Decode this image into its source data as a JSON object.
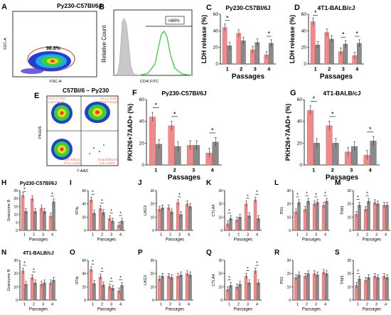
{
  "panels_static": {
    "A": {
      "label": "A",
      "title": "Py230-C57Bl/6J",
      "gate_pct": "98.8%",
      "ylabel": "SSC-A",
      "xlabel": "FSC-A"
    },
    "B": {
      "label": "B",
      "ylabel": "Relative Count",
      "xlabel": "CD4/ FITC",
      "gate": ">98%"
    },
    "E": {
      "label": "E",
      "title": "C57Bl/6 – Py230",
      "ylabel": "PKH26",
      "xlabel": "7-AAD",
      "q_tl_name": "Live Target",
      "q_tl_pct": "37.3 ± 7.9%",
      "q_tr_name": "Dead Target",
      "q_tr_pct": "44.1 ± 5.9%",
      "q_bl_name": "Live Effector",
      "q_bl_pct": "97.8 ± 0.5%",
      "q_br_name": "Dead Effector",
      "q_br_pct": "1.9 ± 0.5%"
    }
  },
  "colors": {
    "salmon": "#f08a8a",
    "grey": "#8a8a8a",
    "dark_grey": "#555555",
    "green": "#39d12f"
  },
  "chart_data": [
    {
      "id": "C",
      "type": "bar",
      "title": "Py230-C57Bl/6J",
      "xlabel": "Passages",
      "ylabel": "LDH release (%)",
      "categories": [
        "1",
        "2",
        "3",
        "4"
      ],
      "ylim": [
        0,
        60
      ],
      "yticks": [
        0,
        20,
        40,
        60
      ],
      "series": [
        {
          "values": [
            44,
            37,
            17,
            11
          ]
        },
        {
          "values": [
            22,
            28,
            26,
            25
          ]
        }
      ],
      "sig": [
        1,
        4
      ]
    },
    {
      "id": "D",
      "type": "bar",
      "title": "4T1-BALB/cJ",
      "xlabel": "Passages",
      "ylabel": "LDH release (%)",
      "categories": [
        "1",
        "2",
        "3",
        "4"
      ],
      "ylim": [
        0,
        60
      ],
      "yticks": [
        0,
        20,
        40,
        60
      ],
      "series": [
        {
          "values": [
            51,
            38,
            15,
            10
          ]
        },
        {
          "values": [
            23,
            30,
            24,
            25
          ]
        }
      ],
      "sig": [
        1,
        3,
        4
      ]
    },
    {
      "id": "F",
      "type": "bar",
      "title": "Py230-C57Bl/6J",
      "xlabel": "Passages",
      "ylabel": "PKH26+7AAD+ (%)",
      "categories": [
        "1",
        "2",
        "3",
        "4"
      ],
      "ylim": [
        0,
        60
      ],
      "yticks": [
        0,
        20,
        40,
        60
      ],
      "series": [
        {
          "values": [
            44,
            36,
            18,
            11
          ]
        },
        {
          "values": [
            19,
            17,
            18,
            21
          ]
        }
      ],
      "sig": [
        1,
        2,
        4
      ]
    },
    {
      "id": "G",
      "type": "bar",
      "title": "4T1-BALB/cJ",
      "xlabel": "Passages",
      "ylabel": "PKH26+7AAD+ (%)",
      "categories": [
        "1",
        "2",
        "3",
        "4"
      ],
      "ylim": [
        0,
        60
      ],
      "yticks": [
        0,
        20,
        40,
        60
      ],
      "series": [
        {
          "values": [
            50,
            36,
            12,
            9
          ]
        },
        {
          "values": [
            20,
            20,
            17,
            22
          ]
        }
      ],
      "sig": [
        1,
        2,
        4
      ]
    },
    {
      "id": "H",
      "type": "bar",
      "title": "Py230-C57Bl/6J",
      "xlabel": "Passages",
      "ylabel": "Granzyme B",
      "categories": [
        "1",
        "2",
        "3",
        "4"
      ],
      "ylim": [
        0,
        25
      ],
      "yticks": [
        0,
        5,
        10,
        15,
        20,
        25
      ],
      "series": [
        {
          "values": [
            22,
            20,
            14,
            9
          ]
        },
        {
          "values": [
            12,
            12,
            12,
            18
          ]
        }
      ],
      "sig": [
        1,
        4
      ]
    },
    {
      "id": "I",
      "type": "bar",
      "xlabel": "Passages",
      "ylabel": "IFNγ",
      "categories": [
        "1",
        "2",
        "3",
        "4"
      ],
      "ylim": [
        0,
        60
      ],
      "yticks": [
        0,
        20,
        40,
        60
      ],
      "series": [
        {
          "values": [
            46,
            33,
            18,
            8
          ]
        },
        {
          "values": [
            26,
            27,
            14,
            14
          ]
        }
      ],
      "sig": [
        1,
        2,
        3,
        4
      ]
    },
    {
      "id": "J",
      "type": "bar",
      "xlabel": "Passages",
      "ylabel": "LAG3",
      "categories": [
        "1",
        "2",
        "3",
        "4"
      ],
      "ylim": [
        0,
        30
      ],
      "yticks": [
        0,
        10,
        20,
        30
      ],
      "series": [
        {
          "values": [
            16,
            17,
            21,
            20
          ]
        },
        {
          "values": [
            17,
            14,
            12,
            18
          ]
        }
      ],
      "sig": [
        3
      ]
    },
    {
      "id": "K",
      "type": "bar",
      "xlabel": "Passages",
      "ylabel": "CTLA4",
      "categories": [
        "1",
        "2",
        "3",
        "4"
      ],
      "ylim": [
        0,
        30
      ],
      "yticks": [
        0,
        10,
        20,
        30
      ],
      "series": [
        {
          "values": [
            5,
            8,
            20,
            23
          ]
        },
        {
          "values": [
            9,
            10,
            11,
            9
          ]
        }
      ],
      "sig": [
        1,
        3,
        4
      ]
    },
    {
      "id": "L",
      "type": "bar",
      "xlabel": "Passages",
      "ylabel": "PD1",
      "categories": [
        "1",
        "2",
        "3",
        "4"
      ],
      "ylim": [
        0,
        30
      ],
      "yticks": [
        0,
        10,
        20,
        30
      ],
      "series": [
        {
          "values": [
            14,
            16,
            20,
            19
          ]
        },
        {
          "values": [
            21,
            22,
            21,
            22
          ]
        }
      ],
      "sig": [
        1,
        2,
        3,
        4
      ]
    },
    {
      "id": "M",
      "type": "bar",
      "xlabel": "Passages",
      "ylabel": "TIM3",
      "categories": [
        "1",
        "2",
        "3",
        "4"
      ],
      "ylim": [
        0,
        30
      ],
      "yticks": [
        0,
        10,
        20,
        30
      ],
      "series": [
        {
          "values": [
            12,
            16,
            21,
            19
          ]
        },
        {
          "values": [
            19,
            22,
            20,
            19
          ]
        }
      ],
      "sig": [
        1,
        2
      ]
    },
    {
      "id": "N",
      "type": "bar",
      "title": "4T1-BALB/cJ",
      "xlabel": "Passages",
      "ylabel": "Granzyme B",
      "categories": [
        "1",
        "2",
        "3",
        "4"
      ],
      "ylim": [
        0,
        30
      ],
      "yticks": [
        0,
        10,
        20,
        30
      ],
      "series": [
        {
          "values": [
            22,
            17,
            12,
            13
          ]
        },
        {
          "values": [
            12,
            13,
            13,
            15
          ]
        }
      ],
      "sig": [
        1,
        2
      ]
    },
    {
      "id": "O",
      "type": "bar",
      "xlabel": "Passages",
      "ylabel": "IFNγ",
      "categories": [
        "1",
        "2",
        "3",
        "4"
      ],
      "ylim": [
        0,
        60
      ],
      "yticks": [
        0,
        20,
        40,
        60
      ],
      "series": [
        {
          "values": [
            46,
            35,
            20,
            14
          ]
        },
        {
          "values": [
            25,
            23,
            18,
            22
          ]
        }
      ],
      "sig": [
        1,
        2,
        3,
        4
      ]
    },
    {
      "id": "P",
      "type": "bar",
      "xlabel": "Passages",
      "ylabel": "LAG3",
      "categories": [
        "1",
        "2",
        "3",
        "4"
      ],
      "ylim": [
        0,
        30
      ],
      "yticks": [
        0,
        10,
        20,
        30
      ],
      "series": [
        {
          "values": [
            16,
            18,
            18,
            20
          ]
        },
        {
          "values": [
            18,
            17,
            19,
            19
          ]
        }
      ],
      "sig": []
    },
    {
      "id": "Q",
      "type": "bar",
      "xlabel": "Passages",
      "ylabel": "CTLA4",
      "categories": [
        "1",
        "2",
        "3",
        "4"
      ],
      "ylim": [
        0,
        30
      ],
      "yticks": [
        0,
        10,
        20,
        30
      ],
      "series": [
        {
          "values": [
            8,
            10,
            18,
            22
          ]
        },
        {
          "values": [
            11,
            12,
            13,
            13
          ]
        }
      ],
      "sig": [
        1,
        3,
        4
      ]
    },
    {
      "id": "R",
      "type": "bar",
      "xlabel": "Passages",
      "ylabel": "PD1",
      "categories": [
        "1",
        "2",
        "3",
        "4"
      ],
      "ylim": [
        0,
        30
      ],
      "yticks": [
        0,
        10,
        20,
        30
      ],
      "series": [
        {
          "values": [
            17,
            18,
            20,
            21
          ]
        },
        {
          "values": [
            19,
            20,
            19,
            20
          ]
        }
      ],
      "sig": []
    },
    {
      "id": "S",
      "type": "bar",
      "xlabel": "Passages",
      "ylabel": "TIM3",
      "categories": [
        "1",
        "2",
        "3",
        "4"
      ],
      "ylim": [
        0,
        30
      ],
      "yticks": [
        0,
        10,
        20,
        30
      ],
      "series": [
        {
          "values": [
            11,
            15,
            18,
            18
          ]
        },
        {
          "values": [
            16,
            17,
            17,
            17
          ]
        }
      ],
      "sig": [
        1
      ]
    }
  ]
}
